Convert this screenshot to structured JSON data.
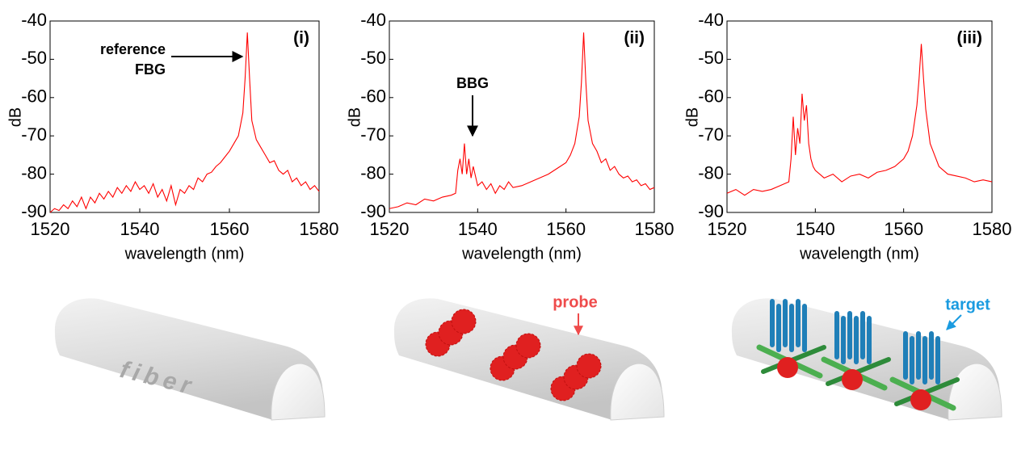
{
  "chart_data": [
    {
      "type": "line",
      "panel_label": "(i)",
      "annotation": [
        "reference",
        "FBG"
      ],
      "x_label": "wavelength (nm)",
      "y_label": "dB",
      "xlim": [
        1520,
        1580
      ],
      "xticks": [
        1520,
        1540,
        1560,
        1580
      ],
      "ylim": [
        -90,
        -40
      ],
      "yticks": [
        -90,
        -80,
        -70,
        -60,
        -50,
        -40
      ],
      "color": "#ff0000",
      "x": [
        1520,
        1521,
        1522,
        1523,
        1524,
        1525,
        1526,
        1527,
        1528,
        1529,
        1530,
        1531,
        1532,
        1533,
        1534,
        1535,
        1536,
        1537,
        1538,
        1539,
        1540,
        1541,
        1542,
        1543,
        1544,
        1545,
        1546,
        1547,
        1548,
        1549,
        1550,
        1551,
        1552,
        1553,
        1554,
        1555,
        1556,
        1557,
        1558,
        1559,
        1560,
        1561,
        1562,
        1563,
        1563.5,
        1564,
        1564.5,
        1565,
        1566,
        1567,
        1568,
        1569,
        1570,
        1571,
        1572,
        1573,
        1574,
        1575,
        1576,
        1577,
        1578,
        1579,
        1580
      ],
      "values": [
        -90,
        -89,
        -89.5,
        -88,
        -89,
        -87,
        -88.5,
        -86,
        -89,
        -86,
        -87.5,
        -85,
        -86.5,
        -84.5,
        -86,
        -83.5,
        -85,
        -83,
        -84.5,
        -82,
        -84,
        -83,
        -85,
        -82.5,
        -86,
        -84,
        -87,
        -83,
        -88,
        -84,
        -85,
        -83,
        -84,
        -81,
        -82,
        -80,
        -79.5,
        -78,
        -77,
        -75.5,
        -74,
        -72,
        -70,
        -64,
        -55,
        -43,
        -55,
        -66,
        -71,
        -73,
        -75,
        -77,
        -76.5,
        -79,
        -80,
        -79,
        -82,
        -81,
        -83,
        -82,
        -84,
        -83,
        -84.5
      ]
    },
    {
      "type": "line",
      "panel_label": "(ii)",
      "annotation": [
        "BBG"
      ],
      "x_label": "wavelength (nm)",
      "y_label": "dB",
      "xlim": [
        1520,
        1580
      ],
      "xticks": [
        1520,
        1540,
        1560,
        1580
      ],
      "ylim": [
        -90,
        -40
      ],
      "yticks": [
        -90,
        -80,
        -70,
        -60,
        -50,
        -40
      ],
      "color": "#ff0000",
      "x": [
        1520,
        1522,
        1524,
        1526,
        1528,
        1530,
        1532,
        1534,
        1535,
        1535.5,
        1536,
        1536.5,
        1537,
        1537.5,
        1538,
        1538.5,
        1539,
        1540,
        1541,
        1542,
        1543,
        1544,
        1545,
        1546,
        1547,
        1548,
        1550,
        1552,
        1554,
        1556,
        1558,
        1560,
        1561,
        1562,
        1563,
        1563.5,
        1564,
        1564.5,
        1565,
        1566,
        1567,
        1568,
        1569,
        1570,
        1571,
        1572,
        1573,
        1574,
        1575,
        1576,
        1577,
        1578,
        1579,
        1580
      ],
      "values": [
        -89,
        -88.5,
        -87.5,
        -88,
        -86.5,
        -87,
        -86,
        -85.5,
        -85,
        -79,
        -76,
        -80,
        -72,
        -80,
        -76,
        -81,
        -78,
        -83,
        -82,
        -84,
        -82.5,
        -85,
        -83,
        -84,
        -82,
        -83.5,
        -83,
        -82,
        -81,
        -80,
        -78.5,
        -77,
        -75,
        -72,
        -65,
        -56,
        -43,
        -56,
        -66,
        -72,
        -74,
        -77,
        -76,
        -79,
        -78,
        -80,
        -81,
        -80.5,
        -82,
        -81.5,
        -83,
        -82.5,
        -84,
        -83.5
      ]
    },
    {
      "type": "line",
      "panel_label": "(iii)",
      "x_label": "wavelength (nm)",
      "y_label": "dB",
      "xlim": [
        1520,
        1580
      ],
      "xticks": [
        1520,
        1540,
        1560,
        1580
      ],
      "ylim": [
        -90,
        -40
      ],
      "yticks": [
        -90,
        -80,
        -70,
        -60,
        -50,
        -40
      ],
      "color": "#ff0000",
      "x": [
        1520,
        1522,
        1524,
        1526,
        1528,
        1530,
        1532,
        1533,
        1534,
        1534.5,
        1535,
        1535.5,
        1536,
        1536.5,
        1537,
        1537.5,
        1538,
        1538.5,
        1539,
        1539.5,
        1540,
        1542,
        1544,
        1546,
        1548,
        1550,
        1552,
        1554,
        1556,
        1558,
        1560,
        1561,
        1562,
        1563,
        1563.5,
        1564,
        1564.5,
        1565,
        1566,
        1567,
        1568,
        1570,
        1572,
        1574,
        1576,
        1578,
        1580
      ],
      "values": [
        -85,
        -84,
        -85.5,
        -84,
        -84.5,
        -84,
        -83,
        -82.5,
        -82,
        -76,
        -65,
        -75,
        -68,
        -72,
        -59,
        -66,
        -62,
        -72,
        -76,
        -78,
        -79,
        -81,
        -80,
        -82,
        -80.5,
        -80,
        -81,
        -79.5,
        -79,
        -78,
        -76,
        -74,
        -70,
        -62,
        -55,
        -46,
        -55,
        -63,
        -72,
        -75,
        -78,
        -80,
        -80.5,
        -81,
        -82,
        -81.5,
        -82
      ]
    }
  ],
  "illustration_labels": [
    "fiber",
    "probe",
    "target"
  ]
}
